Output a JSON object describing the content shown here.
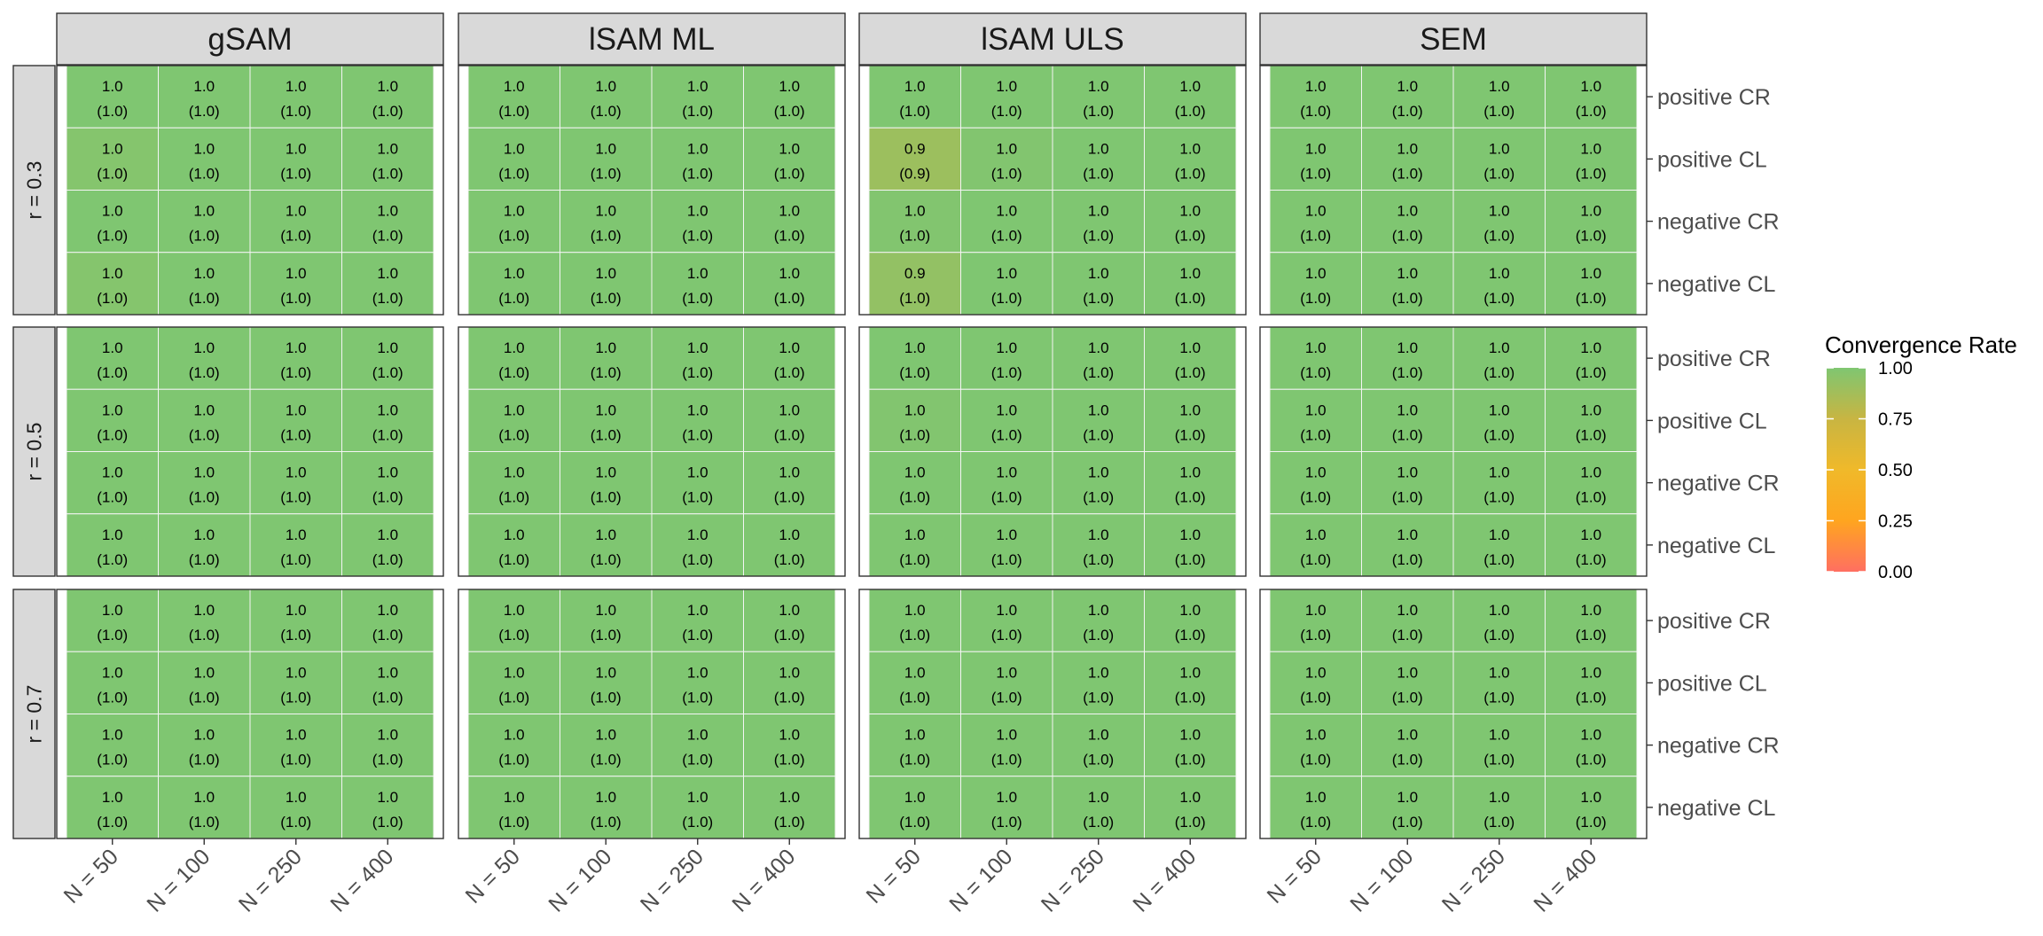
{
  "chart_data": {
    "type": "heatmap",
    "title": "",
    "col_facets": [
      "gSAM",
      "lSAM ML",
      "lSAM ULS",
      "SEM"
    ],
    "row_facets": [
      "r = 0.3",
      "r = 0.5",
      "r = 0.7"
    ],
    "x_categories": [
      "N = 50",
      "N = 100",
      "N = 250",
      "N = 400"
    ],
    "y_categories": [
      "positive CR",
      "positive CL",
      "negative CR",
      "negative CL"
    ],
    "legend": {
      "title": "Convergence Rate",
      "placement": "right",
      "range": [
        0,
        1
      ],
      "ticks": [
        "0.00",
        "0.25",
        "0.50",
        "0.75",
        "1.00"
      ],
      "gradient": [
        "#ff6f61",
        "#ffa51f",
        "#f0b92a",
        "#c8b542",
        "#7fc671"
      ]
    },
    "cell_label_format": "value (secondary value)",
    "panels": [
      {
        "col": "gSAM",
        "row": "r = 0.3",
        "cells": [
          [
            [
              1.0,
              1.0
            ],
            [
              1.0,
              1.0
            ],
            [
              1.0,
              1.0
            ],
            [
              1.0,
              1.0
            ]
          ],
          [
            [
              0.98,
              1.0
            ],
            [
              1.0,
              1.0
            ],
            [
              1.0,
              1.0
            ],
            [
              1.0,
              1.0
            ]
          ],
          [
            [
              1.0,
              1.0
            ],
            [
              1.0,
              1.0
            ],
            [
              1.0,
              1.0
            ],
            [
              1.0,
              1.0
            ]
          ],
          [
            [
              0.98,
              1.0
            ],
            [
              1.0,
              1.0
            ],
            [
              1.0,
              1.0
            ],
            [
              1.0,
              1.0
            ]
          ]
        ]
      },
      {
        "col": "lSAM ML",
        "row": "r = 0.3",
        "cells": [
          [
            [
              1.0,
              1.0
            ],
            [
              1.0,
              1.0
            ],
            [
              1.0,
              1.0
            ],
            [
              1.0,
              1.0
            ]
          ],
          [
            [
              1.0,
              1.0
            ],
            [
              1.0,
              1.0
            ],
            [
              1.0,
              1.0
            ],
            [
              1.0,
              1.0
            ]
          ],
          [
            [
              1.0,
              1.0
            ],
            [
              1.0,
              1.0
            ],
            [
              1.0,
              1.0
            ],
            [
              1.0,
              1.0
            ]
          ],
          [
            [
              1.0,
              1.0
            ],
            [
              1.0,
              1.0
            ],
            [
              1.0,
              1.0
            ],
            [
              1.0,
              1.0
            ]
          ]
        ]
      },
      {
        "col": "lSAM ULS",
        "row": "r = 0.3",
        "cells": [
          [
            [
              1.0,
              1.0
            ],
            [
              1.0,
              1.0
            ],
            [
              1.0,
              1.0
            ],
            [
              1.0,
              1.0
            ]
          ],
          [
            [
              0.9,
              0.9
            ],
            [
              0.99,
              1.0
            ],
            [
              1.0,
              1.0
            ],
            [
              1.0,
              1.0
            ]
          ],
          [
            [
              0.99,
              1.0
            ],
            [
              1.0,
              1.0
            ],
            [
              1.0,
              1.0
            ],
            [
              1.0,
              1.0
            ]
          ],
          [
            [
              0.93,
              1.0
            ],
            [
              1.0,
              1.0
            ],
            [
              1.0,
              1.0
            ],
            [
              1.0,
              1.0
            ]
          ]
        ]
      },
      {
        "col": "SEM",
        "row": "r = 0.3",
        "cells": [
          [
            [
              1.0,
              1.0
            ],
            [
              1.0,
              1.0
            ],
            [
              1.0,
              1.0
            ],
            [
              1.0,
              1.0
            ]
          ],
          [
            [
              1.0,
              1.0
            ],
            [
              1.0,
              1.0
            ],
            [
              1.0,
              1.0
            ],
            [
              1.0,
              1.0
            ]
          ],
          [
            [
              1.0,
              1.0
            ],
            [
              1.0,
              1.0
            ],
            [
              1.0,
              1.0
            ],
            [
              1.0,
              1.0
            ]
          ],
          [
            [
              1.0,
              1.0
            ],
            [
              1.0,
              1.0
            ],
            [
              1.0,
              1.0
            ],
            [
              1.0,
              1.0
            ]
          ]
        ]
      },
      {
        "col": "gSAM",
        "row": "r = 0.5",
        "cells": [
          [
            [
              1.0,
              1.0
            ],
            [
              1.0,
              1.0
            ],
            [
              1.0,
              1.0
            ],
            [
              1.0,
              1.0
            ]
          ],
          [
            [
              1.0,
              1.0
            ],
            [
              1.0,
              1.0
            ],
            [
              1.0,
              1.0
            ],
            [
              1.0,
              1.0
            ]
          ],
          [
            [
              1.0,
              1.0
            ],
            [
              1.0,
              1.0
            ],
            [
              1.0,
              1.0
            ],
            [
              1.0,
              1.0
            ]
          ],
          [
            [
              1.0,
              1.0
            ],
            [
              1.0,
              1.0
            ],
            [
              1.0,
              1.0
            ],
            [
              1.0,
              1.0
            ]
          ]
        ]
      },
      {
        "col": "lSAM ML",
        "row": "r = 0.5",
        "cells": [
          [
            [
              1.0,
              1.0
            ],
            [
              1.0,
              1.0
            ],
            [
              1.0,
              1.0
            ],
            [
              1.0,
              1.0
            ]
          ],
          [
            [
              1.0,
              1.0
            ],
            [
              1.0,
              1.0
            ],
            [
              1.0,
              1.0
            ],
            [
              1.0,
              1.0
            ]
          ],
          [
            [
              1.0,
              1.0
            ],
            [
              1.0,
              1.0
            ],
            [
              1.0,
              1.0
            ],
            [
              1.0,
              1.0
            ]
          ],
          [
            [
              1.0,
              1.0
            ],
            [
              1.0,
              1.0
            ],
            [
              1.0,
              1.0
            ],
            [
              1.0,
              1.0
            ]
          ]
        ]
      },
      {
        "col": "lSAM ULS",
        "row": "r = 0.5",
        "cells": [
          [
            [
              1.0,
              1.0
            ],
            [
              1.0,
              1.0
            ],
            [
              1.0,
              1.0
            ],
            [
              1.0,
              1.0
            ]
          ],
          [
            [
              0.99,
              1.0
            ],
            [
              1.0,
              1.0
            ],
            [
              1.0,
              1.0
            ],
            [
              1.0,
              1.0
            ]
          ],
          [
            [
              1.0,
              1.0
            ],
            [
              1.0,
              1.0
            ],
            [
              1.0,
              1.0
            ],
            [
              1.0,
              1.0
            ]
          ],
          [
            [
              1.0,
              1.0
            ],
            [
              1.0,
              1.0
            ],
            [
              1.0,
              1.0
            ],
            [
              1.0,
              1.0
            ]
          ]
        ]
      },
      {
        "col": "SEM",
        "row": "r = 0.5",
        "cells": [
          [
            [
              1.0,
              1.0
            ],
            [
              1.0,
              1.0
            ],
            [
              1.0,
              1.0
            ],
            [
              1.0,
              1.0
            ]
          ],
          [
            [
              1.0,
              1.0
            ],
            [
              1.0,
              1.0
            ],
            [
              1.0,
              1.0
            ],
            [
              1.0,
              1.0
            ]
          ],
          [
            [
              1.0,
              1.0
            ],
            [
              1.0,
              1.0
            ],
            [
              1.0,
              1.0
            ],
            [
              1.0,
              1.0
            ]
          ],
          [
            [
              1.0,
              1.0
            ],
            [
              1.0,
              1.0
            ],
            [
              1.0,
              1.0
            ],
            [
              1.0,
              1.0
            ]
          ]
        ]
      },
      {
        "col": "gSAM",
        "row": "r = 0.7",
        "cells": [
          [
            [
              1.0,
              1.0
            ],
            [
              1.0,
              1.0
            ],
            [
              1.0,
              1.0
            ],
            [
              1.0,
              1.0
            ]
          ],
          [
            [
              1.0,
              1.0
            ],
            [
              1.0,
              1.0
            ],
            [
              1.0,
              1.0
            ],
            [
              1.0,
              1.0
            ]
          ],
          [
            [
              1.0,
              1.0
            ],
            [
              1.0,
              1.0
            ],
            [
              1.0,
              1.0
            ],
            [
              1.0,
              1.0
            ]
          ],
          [
            [
              1.0,
              1.0
            ],
            [
              1.0,
              1.0
            ],
            [
              1.0,
              1.0
            ],
            [
              1.0,
              1.0
            ]
          ]
        ]
      },
      {
        "col": "lSAM ML",
        "row": "r = 0.7",
        "cells": [
          [
            [
              1.0,
              1.0
            ],
            [
              1.0,
              1.0
            ],
            [
              1.0,
              1.0
            ],
            [
              1.0,
              1.0
            ]
          ],
          [
            [
              1.0,
              1.0
            ],
            [
              1.0,
              1.0
            ],
            [
              1.0,
              1.0
            ],
            [
              1.0,
              1.0
            ]
          ],
          [
            [
              1.0,
              1.0
            ],
            [
              1.0,
              1.0
            ],
            [
              1.0,
              1.0
            ],
            [
              1.0,
              1.0
            ]
          ],
          [
            [
              1.0,
              1.0
            ],
            [
              1.0,
              1.0
            ],
            [
              1.0,
              1.0
            ],
            [
              1.0,
              1.0
            ]
          ]
        ]
      },
      {
        "col": "lSAM ULS",
        "row": "r = 0.7",
        "cells": [
          [
            [
              1.0,
              1.0
            ],
            [
              1.0,
              1.0
            ],
            [
              1.0,
              1.0
            ],
            [
              1.0,
              1.0
            ]
          ],
          [
            [
              1.0,
              1.0
            ],
            [
              1.0,
              1.0
            ],
            [
              1.0,
              1.0
            ],
            [
              1.0,
              1.0
            ]
          ],
          [
            [
              1.0,
              1.0
            ],
            [
              1.0,
              1.0
            ],
            [
              1.0,
              1.0
            ],
            [
              1.0,
              1.0
            ]
          ],
          [
            [
              1.0,
              1.0
            ],
            [
              1.0,
              1.0
            ],
            [
              1.0,
              1.0
            ],
            [
              1.0,
              1.0
            ]
          ]
        ]
      },
      {
        "col": "SEM",
        "row": "r = 0.7",
        "cells": [
          [
            [
              1.0,
              1.0
            ],
            [
              1.0,
              1.0
            ],
            [
              1.0,
              1.0
            ],
            [
              1.0,
              1.0
            ]
          ],
          [
            [
              1.0,
              1.0
            ],
            [
              1.0,
              1.0
            ],
            [
              1.0,
              1.0
            ],
            [
              1.0,
              1.0
            ]
          ],
          [
            [
              1.0,
              1.0
            ],
            [
              1.0,
              1.0
            ],
            [
              1.0,
              1.0
            ],
            [
              1.0,
              1.0
            ]
          ],
          [
            [
              1.0,
              1.0
            ],
            [
              1.0,
              1.0
            ],
            [
              1.0,
              1.0
            ],
            [
              1.0,
              1.0
            ]
          ]
        ]
      }
    ]
  }
}
